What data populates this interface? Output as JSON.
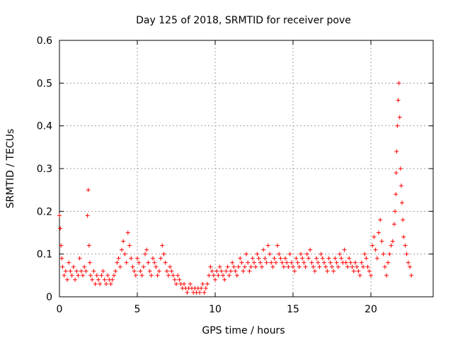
{
  "chart_data": {
    "type": "scatter",
    "title": "Day 125 of 2018, SRMTID for receiver pove",
    "xlabel": "GPS time / hours",
    "ylabel": "SRMTID / TECUs",
    "xlim": [
      0,
      24
    ],
    "ylim": [
      0,
      0.6
    ],
    "xticks": [
      0,
      5,
      10,
      15,
      20
    ],
    "yticks": [
      0,
      0.1,
      0.2,
      0.3,
      0.4,
      0.5,
      0.6
    ],
    "xtick_labels": [
      "0",
      "5",
      "10",
      "15",
      "20"
    ],
    "ytick_labels": [
      "0",
      "0.1",
      "0.2",
      "0.3",
      "0.4",
      "0.5",
      "0.6"
    ],
    "grid": true,
    "marker": "+",
    "color": "#ff0000",
    "series": [
      {
        "name": "SRMTID",
        "x": [
          0.0,
          0.05,
          0.1,
          0.15,
          0.2,
          0.3,
          0.4,
          0.5,
          0.6,
          0.7,
          0.8,
          0.9,
          1.0,
          1.1,
          1.2,
          1.3,
          1.4,
          1.5,
          1.6,
          1.7,
          1.8,
          1.85,
          1.9,
          1.95,
          2.0,
          2.1,
          2.2,
          2.3,
          2.4,
          2.5,
          2.6,
          2.7,
          2.8,
          2.9,
          3.0,
          3.1,
          3.2,
          3.3,
          3.4,
          3.5,
          3.6,
          3.7,
          3.8,
          3.9,
          4.0,
          4.1,
          4.2,
          4.3,
          4.4,
          4.5,
          4.6,
          4.7,
          4.8,
          4.9,
          5.0,
          5.1,
          5.2,
          5.3,
          5.4,
          5.5,
          5.6,
          5.7,
          5.8,
          5.9,
          6.0,
          6.1,
          6.2,
          6.3,
          6.4,
          6.5,
          6.6,
          6.7,
          6.8,
          6.9,
          7.0,
          7.1,
          7.2,
          7.3,
          7.4,
          7.5,
          7.6,
          7.7,
          7.8,
          7.9,
          8.0,
          8.1,
          8.2,
          8.3,
          8.4,
          8.5,
          8.6,
          8.7,
          8.8,
          8.9,
          9.0,
          9.1,
          9.2,
          9.3,
          9.4,
          9.5,
          9.6,
          9.7,
          9.8,
          9.9,
          10.0,
          10.1,
          10.2,
          10.3,
          10.4,
          10.5,
          10.6,
          10.7,
          10.8,
          10.9,
          11.0,
          11.1,
          11.2,
          11.3,
          11.4,
          11.5,
          11.6,
          11.7,
          11.8,
          11.9,
          12.0,
          12.1,
          12.2,
          12.3,
          12.4,
          12.5,
          12.6,
          12.7,
          12.8,
          12.9,
          13.0,
          13.1,
          13.2,
          13.3,
          13.4,
          13.5,
          13.6,
          13.7,
          13.8,
          13.9,
          14.0,
          14.1,
          14.2,
          14.3,
          14.4,
          14.5,
          14.6,
          14.7,
          14.8,
          14.9,
          15.0,
          15.1,
          15.2,
          15.3,
          15.4,
          15.5,
          15.6,
          15.7,
          15.8,
          15.9,
          16.0,
          16.1,
          16.2,
          16.3,
          16.4,
          16.5,
          16.6,
          16.7,
          16.8,
          16.9,
          17.0,
          17.1,
          17.2,
          17.3,
          17.4,
          17.5,
          17.6,
          17.7,
          17.8,
          17.9,
          18.0,
          18.1,
          18.2,
          18.3,
          18.4,
          18.5,
          18.6,
          18.7,
          18.8,
          18.9,
          19.0,
          19.1,
          19.2,
          19.3,
          19.4,
          19.5,
          19.6,
          19.7,
          19.8,
          19.9,
          20.0,
          20.1,
          20.2,
          20.3,
          20.4,
          20.5,
          20.6,
          20.7,
          20.8,
          20.9,
          21.0,
          21.1,
          21.2,
          21.3,
          21.4,
          21.5,
          21.55,
          21.6,
          21.62,
          21.65,
          21.7,
          21.75,
          21.8,
          21.85,
          21.9,
          21.95,
          22.0,
          22.05,
          22.1,
          22.2,
          22.3,
          22.4,
          22.5,
          22.6
        ],
        "y": [
          0.19,
          0.16,
          0.12,
          0.09,
          0.07,
          0.05,
          0.06,
          0.04,
          0.08,
          0.06,
          0.05,
          0.07,
          0.04,
          0.06,
          0.05,
          0.09,
          0.06,
          0.05,
          0.07,
          0.06,
          0.19,
          0.25,
          0.12,
          0.08,
          0.05,
          0.04,
          0.06,
          0.03,
          0.05,
          0.04,
          0.03,
          0.05,
          0.06,
          0.04,
          0.03,
          0.05,
          0.04,
          0.03,
          0.04,
          0.05,
          0.06,
          0.08,
          0.09,
          0.07,
          0.11,
          0.13,
          0.1,
          0.08,
          0.15,
          0.12,
          0.09,
          0.07,
          0.06,
          0.05,
          0.09,
          0.08,
          0.06,
          0.05,
          0.07,
          0.1,
          0.11,
          0.08,
          0.06,
          0.05,
          0.09,
          0.08,
          0.07,
          0.05,
          0.06,
          0.09,
          0.12,
          0.1,
          0.08,
          0.06,
          0.05,
          0.07,
          0.06,
          0.05,
          0.04,
          0.03,
          0.05,
          0.04,
          0.03,
          0.02,
          0.03,
          0.02,
          0.01,
          0.02,
          0.03,
          0.02,
          0.01,
          0.02,
          0.01,
          0.02,
          0.01,
          0.02,
          0.03,
          0.01,
          0.02,
          0.03,
          0.05,
          0.07,
          0.06,
          0.05,
          0.04,
          0.06,
          0.05,
          0.07,
          0.06,
          0.05,
          0.04,
          0.06,
          0.07,
          0.05,
          0.06,
          0.08,
          0.07,
          0.06,
          0.05,
          0.07,
          0.09,
          0.08,
          0.06,
          0.07,
          0.1,
          0.08,
          0.06,
          0.07,
          0.09,
          0.08,
          0.07,
          0.1,
          0.09,
          0.08,
          0.07,
          0.11,
          0.09,
          0.08,
          0.12,
          0.1,
          0.08,
          0.07,
          0.09,
          0.08,
          0.12,
          0.1,
          0.09,
          0.08,
          0.07,
          0.09,
          0.08,
          0.07,
          0.1,
          0.08,
          0.07,
          0.06,
          0.09,
          0.08,
          0.07,
          0.1,
          0.09,
          0.08,
          0.07,
          0.1,
          0.09,
          0.11,
          0.08,
          0.07,
          0.06,
          0.09,
          0.08,
          0.07,
          0.1,
          0.09,
          0.08,
          0.07,
          0.06,
          0.09,
          0.08,
          0.07,
          0.06,
          0.09,
          0.08,
          0.07,
          0.1,
          0.09,
          0.08,
          0.11,
          0.08,
          0.07,
          0.09,
          0.08,
          0.07,
          0.06,
          0.08,
          0.07,
          0.06,
          0.05,
          0.08,
          0.07,
          0.1,
          0.09,
          0.07,
          0.06,
          0.05,
          0.12,
          0.14,
          0.11,
          0.09,
          0.15,
          0.18,
          0.13,
          0.1,
          0.07,
          0.05,
          0.08,
          0.1,
          0.12,
          0.13,
          0.17,
          0.2,
          0.24,
          0.29,
          0.34,
          0.4,
          0.46,
          0.5,
          0.42,
          0.3,
          0.26,
          0.22,
          0.18,
          0.14,
          0.12,
          0.1,
          0.08,
          0.07,
          0.05
        ]
      }
    ]
  }
}
